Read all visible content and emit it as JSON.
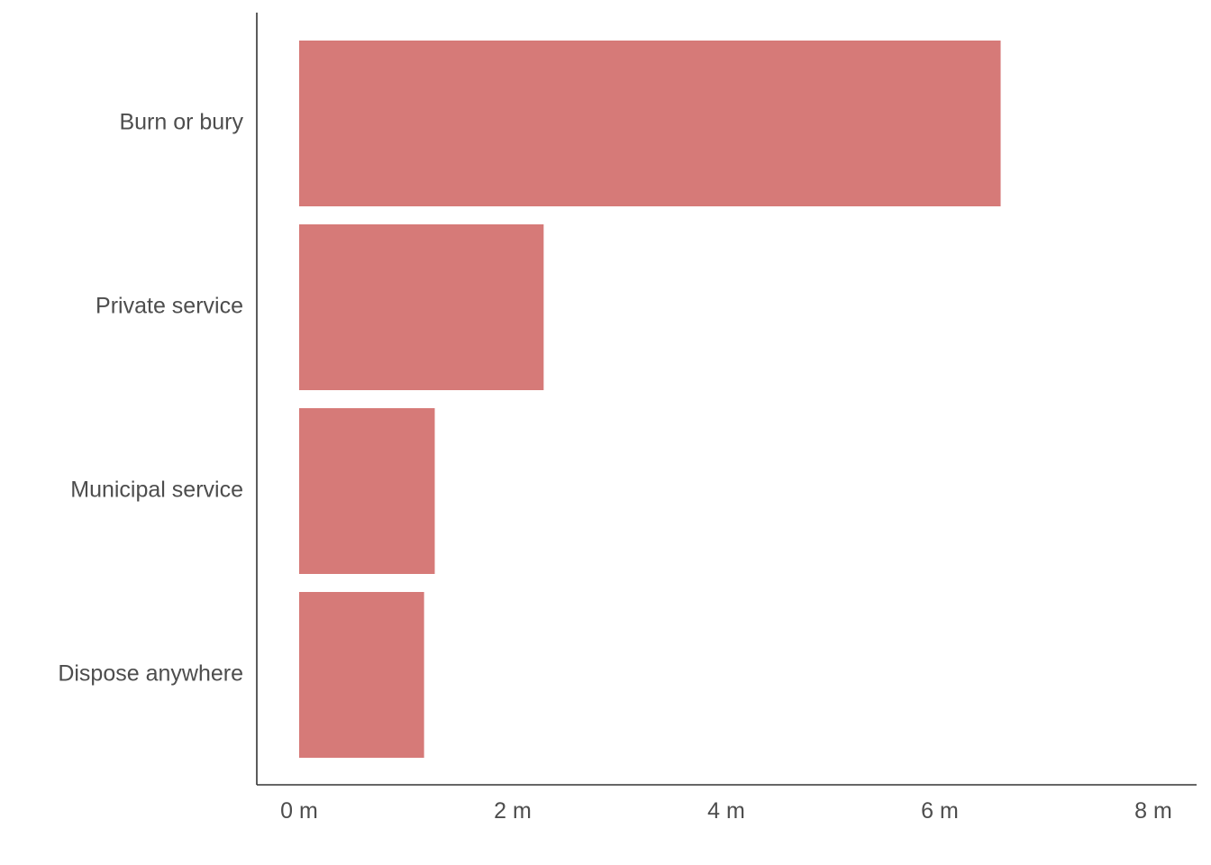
{
  "chart_data": {
    "type": "bar",
    "orientation": "horizontal",
    "title": "",
    "xlabel": "",
    "ylabel": "",
    "categories": [
      "Burn or bury",
      "Private service",
      "Municipal service",
      "Dispose anywhere"
    ],
    "values": [
      6.57,
      2.29,
      1.27,
      1.17
    ],
    "unit": "m",
    "xlim": [
      0,
      8
    ],
    "x_ticks": [
      0,
      2,
      4,
      6,
      8
    ],
    "x_tick_labels": [
      "0 m",
      "2 m",
      "4 m",
      "6 m",
      "8 m"
    ],
    "grid": false,
    "legend": "none",
    "bar_color": "#d67a78"
  }
}
